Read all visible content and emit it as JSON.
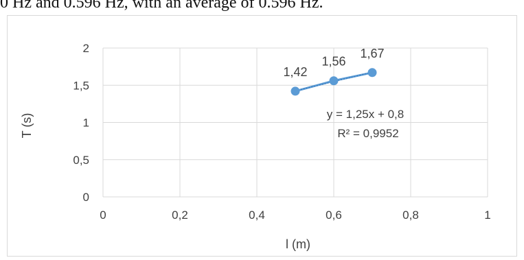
{
  "page": {
    "top_text": "0 Hz and 0.596 Hz, with an average of 0.596 Hz."
  },
  "colors": {
    "series": "#5b9bd5",
    "grid": "#d9d9d9",
    "text": "#404040"
  },
  "chart_data": {
    "type": "scatter",
    "title": "",
    "xlabel": "l (m)",
    "ylabel": "T (s)",
    "xlim": [
      0,
      1
    ],
    "ylim": [
      0,
      2
    ],
    "x_ticks": [
      "0",
      "0,2",
      "0,4",
      "0,6",
      "0,8",
      "1"
    ],
    "y_ticks": [
      "0",
      "0,5",
      "1",
      "1,5",
      "2"
    ],
    "grid": true,
    "legend": "none",
    "series": [
      {
        "x": [
          0.5,
          0.6,
          0.7
        ],
        "y": [
          1.42,
          1.56,
          1.67
        ],
        "labels": [
          "1,42",
          "1,56",
          "1,67"
        ]
      }
    ],
    "trendline": {
      "type": "linear",
      "equation": "y = 1,25x + 0,8",
      "r_squared": "R² = 0,9952"
    }
  }
}
